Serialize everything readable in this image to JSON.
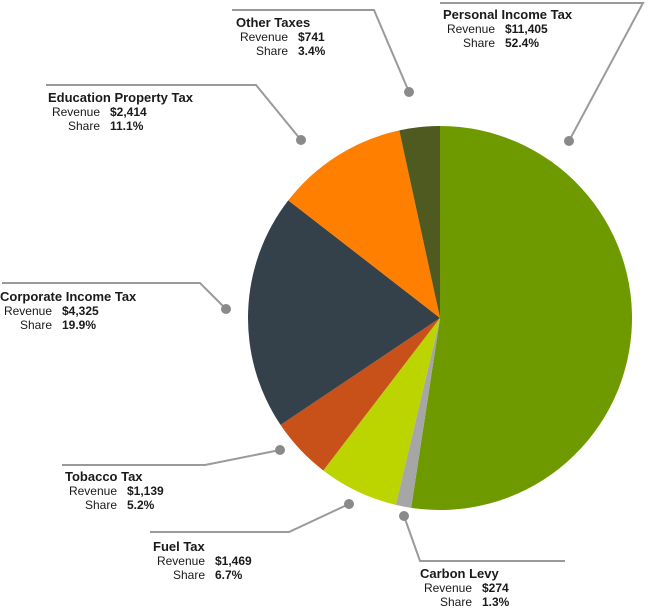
{
  "chart_data": {
    "type": "pie",
    "colors": {
      "Personal Income Tax": "#6e9a00",
      "Carbon Levy": "#a6a6a6",
      "Fuel Tax": "#bcd400",
      "Tobacco Tax": "#c8511a",
      "Corporate Income Tax": "#34404a",
      "Education Property Tax": "#ff7f00",
      "Other Taxes": "#4f5a21"
    },
    "slices": [
      {
        "name": "Personal Income Tax",
        "revenue": "$11,405",
        "share": "52.4%",
        "value": 52.4
      },
      {
        "name": "Carbon Levy",
        "revenue": "$274",
        "share": "1.3%",
        "value": 1.3
      },
      {
        "name": "Fuel Tax",
        "revenue": "$1,469",
        "share": "6.7%",
        "value": 6.7
      },
      {
        "name": "Tobacco Tax",
        "revenue": "$1,139",
        "share": "5.2%",
        "value": 5.2
      },
      {
        "name": "Corporate Income Tax",
        "revenue": "$4,325",
        "share": "19.9%",
        "value": 19.9
      },
      {
        "name": "Education Property Tax",
        "revenue": "$2,414",
        "share": "11.1%",
        "value": 11.1
      },
      {
        "name": "Other Taxes",
        "revenue": "$741",
        "share": "3.4%",
        "value": 3.4
      }
    ],
    "revenue_label": "Revenue",
    "share_label": "Share"
  }
}
